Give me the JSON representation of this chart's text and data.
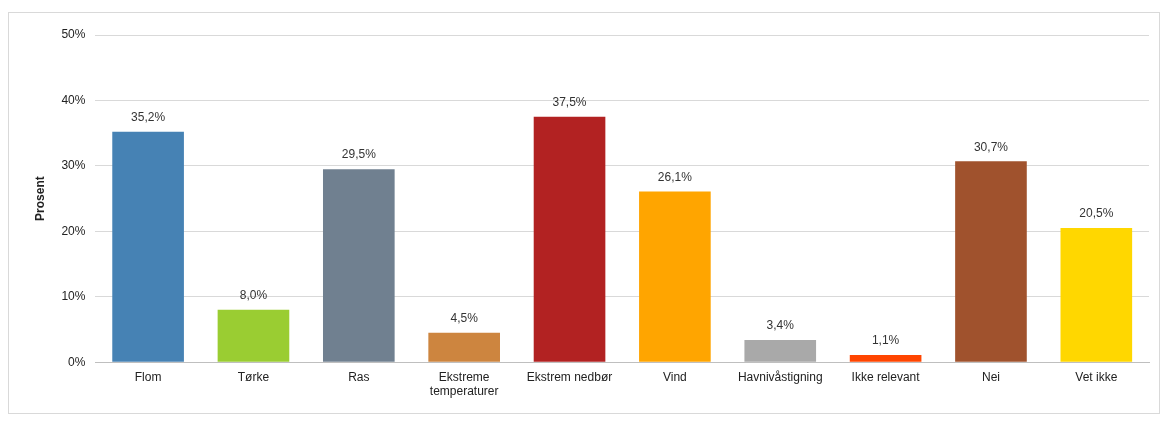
{
  "chart_data": {
    "type": "bar",
    "ylabel": "Prosent",
    "categories": [
      "Flom",
      "Tørke",
      "Ras",
      "Ekstreme temperaturer",
      "Ekstrem nedbør",
      "Vind",
      "Havnivåstigning",
      "Ikke relevant",
      "Nei",
      "Vet ikke"
    ],
    "values": [
      35.2,
      8.0,
      29.5,
      4.5,
      37.5,
      26.1,
      3.4,
      1.1,
      30.7,
      20.5
    ],
    "value_labels": [
      "35,2%",
      "8,0%",
      "29,5%",
      "4,5%",
      "37,5%",
      "26,1%",
      "3,4%",
      "1,1%",
      "30,7%",
      "20,5%"
    ],
    "colors": [
      "#4682b4",
      "#9acd32",
      "#708090",
      "#cd853f",
      "#b22222",
      "#ffa500",
      "#a9a9a9",
      "#ff4500",
      "#a0522d",
      "#ffd700"
    ],
    "ylim": [
      0,
      50
    ],
    "yticks": [
      {
        "value": 0,
        "label": "0%"
      },
      {
        "value": 10,
        "label": "10%"
      },
      {
        "value": 20,
        "label": "20%"
      },
      {
        "value": 30,
        "label": "30%"
      },
      {
        "value": 40,
        "label": "40%"
      },
      {
        "value": 50,
        "label": "50%"
      }
    ],
    "grid": "y",
    "legend": false
  }
}
